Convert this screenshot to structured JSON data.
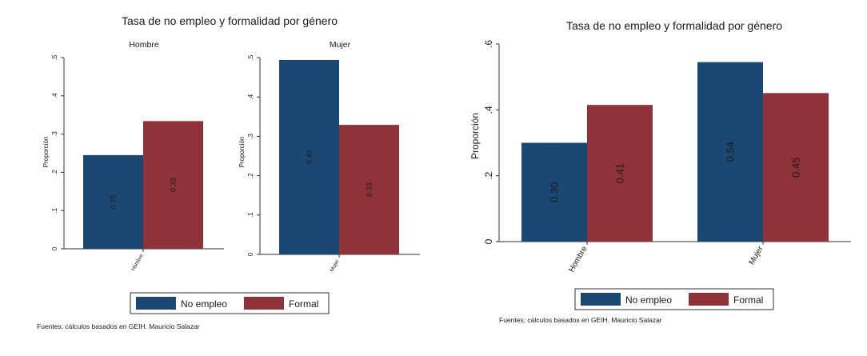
{
  "source_note": "Fuentes: cálculos basados en GEIH. Mauricio Salazar",
  "colors": {
    "no_empleo": "#1b4872",
    "formal": "#90323a"
  },
  "legend_items": [
    "No empleo",
    "Formal"
  ],
  "chart_data": [
    {
      "type": "bar",
      "title": "Tasa de no empleo y formalidad por género",
      "panels": [
        {
          "subtitle": "Hombre",
          "categories": [
            "Hombre"
          ],
          "ylabel": "Proporción",
          "ylim": [
            0,
            0.5
          ],
          "yticks": [
            0,
            0.1,
            0.2,
            0.3,
            0.4,
            0.5
          ],
          "ytick_labels": [
            "0",
            ".1",
            ".2",
            ".3",
            ".4",
            ".5"
          ],
          "series": [
            {
              "name": "No empleo",
              "values": [
                0.245
              ],
              "labels": [
                "0.25"
              ]
            },
            {
              "name": "Formal",
              "values": [
                0.334
              ],
              "labels": [
                "0.33"
              ]
            }
          ]
        },
        {
          "subtitle": "Mujer",
          "categories": [
            "Mujer"
          ],
          "ylabel": "Proporción",
          "ylim": [
            0,
            0.5
          ],
          "yticks": [
            0,
            0.1,
            0.2,
            0.3,
            0.4,
            0.5
          ],
          "ytick_labels": [
            "0",
            ".1",
            ".2",
            ".3",
            ".4",
            ".5"
          ],
          "series": [
            {
              "name": "No empleo",
              "values": [
                0.494
              ],
              "labels": [
                "0.49"
              ]
            },
            {
              "name": "Formal",
              "values": [
                0.329
              ],
              "labels": [
                "0.33"
              ]
            }
          ]
        }
      ],
      "legend": [
        "No empleo",
        "Formal"
      ],
      "note": "Fuentes: cálculos basados en GEIH. Mauricio Salazar"
    },
    {
      "type": "bar",
      "title": "Tasa de no empleo y formalidad por género",
      "categories": [
        "Hombre",
        "Mujer"
      ],
      "ylabel": "Proporción",
      "ylim": [
        0,
        0.6
      ],
      "yticks": [
        0,
        0.2,
        0.4,
        0.6
      ],
      "ytick_labels": [
        "0",
        ".2",
        ".4",
        ".6"
      ],
      "series": [
        {
          "name": "No empleo",
          "values": [
            0.3,
            0.545
          ],
          "labels": [
            "0.30",
            "0.54"
          ]
        },
        {
          "name": "Formal",
          "values": [
            0.415,
            0.451
          ],
          "labels": [
            "0.41",
            "0.45"
          ]
        }
      ],
      "legend": [
        "No empleo",
        "Formal"
      ],
      "note": "Fuentes: cálculos basados en GEIH. Mauricio Salazar"
    }
  ]
}
